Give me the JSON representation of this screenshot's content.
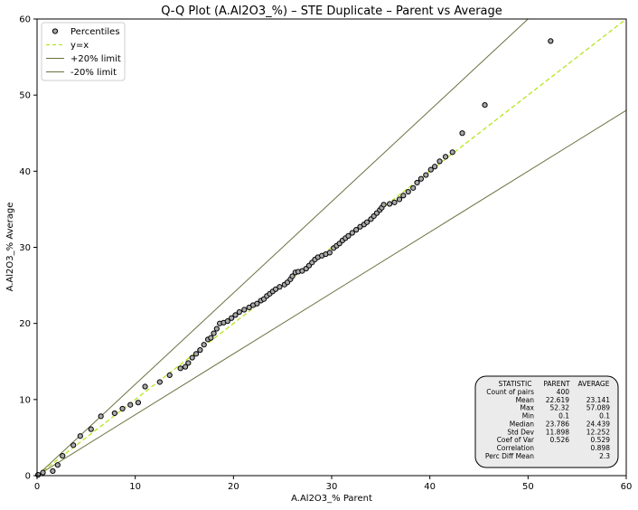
{
  "chart_data": {
    "type": "scatter",
    "title": "Q-Q Plot (A.Al2O3_%) – STE Duplicate – Parent vs Average",
    "xlabel": "A.Al2O3_% Parent",
    "ylabel": "A.Al2O3_% Average",
    "xlim": [
      0,
      60
    ],
    "ylim": [
      0,
      60
    ],
    "xticks": [
      0,
      10,
      20,
      30,
      40,
      50,
      60
    ],
    "yticks": [
      0,
      10,
      20,
      30,
      40,
      50,
      60
    ],
    "grid": false,
    "legend_position": "upper-left",
    "series": [
      {
        "name": "Percentiles",
        "kind": "scatter",
        "marker_color": "#a9a9a9",
        "edge_color": "#000000",
        "points": [
          [
            0.1,
            0.1
          ],
          [
            0.6,
            0.4
          ],
          [
            1.6,
            0.6
          ],
          [
            2.1,
            1.4
          ],
          [
            2.6,
            2.6
          ],
          [
            3.7,
            4.0
          ],
          [
            4.4,
            5.2
          ],
          [
            5.5,
            6.1
          ],
          [
            6.5,
            7.8
          ],
          [
            7.9,
            8.2
          ],
          [
            8.7,
            8.8
          ],
          [
            9.5,
            9.3
          ],
          [
            10.3,
            9.6
          ],
          [
            11.0,
            11.7
          ],
          [
            12.5,
            12.3
          ],
          [
            13.5,
            13.2
          ],
          [
            14.6,
            14.1
          ],
          [
            15.1,
            14.3
          ],
          [
            15.4,
            14.8
          ],
          [
            15.8,
            15.5
          ],
          [
            16.2,
            16.0
          ],
          [
            16.6,
            16.5
          ],
          [
            17.0,
            17.2
          ],
          [
            17.4,
            17.9
          ],
          [
            17.7,
            18.1
          ],
          [
            18.0,
            18.7
          ],
          [
            18.3,
            19.3
          ],
          [
            18.6,
            20.0
          ],
          [
            19.0,
            20.1
          ],
          [
            19.4,
            20.3
          ],
          [
            19.8,
            20.7
          ],
          [
            20.2,
            21.1
          ],
          [
            20.6,
            21.5
          ],
          [
            21.1,
            21.8
          ],
          [
            21.6,
            22.1
          ],
          [
            22.0,
            22.4
          ],
          [
            22.4,
            22.6
          ],
          [
            22.8,
            23.0
          ],
          [
            23.1,
            23.2
          ],
          [
            23.4,
            23.6
          ],
          [
            23.7,
            23.9
          ],
          [
            24.0,
            24.2
          ],
          [
            24.3,
            24.5
          ],
          [
            24.7,
            24.8
          ],
          [
            25.2,
            25.1
          ],
          [
            25.5,
            25.4
          ],
          [
            25.8,
            25.8
          ],
          [
            26.0,
            26.2
          ],
          [
            26.3,
            26.7
          ],
          [
            26.6,
            26.8
          ],
          [
            27.0,
            26.9
          ],
          [
            27.4,
            27.2
          ],
          [
            27.7,
            27.6
          ],
          [
            28.0,
            28.0
          ],
          [
            28.3,
            28.4
          ],
          [
            28.6,
            28.7
          ],
          [
            29.0,
            28.9
          ],
          [
            29.4,
            29.1
          ],
          [
            29.8,
            29.3
          ],
          [
            30.2,
            29.9
          ],
          [
            30.5,
            30.2
          ],
          [
            30.8,
            30.5
          ],
          [
            31.1,
            30.9
          ],
          [
            31.4,
            31.2
          ],
          [
            31.7,
            31.5
          ],
          [
            32.1,
            31.9
          ],
          [
            32.5,
            32.3
          ],
          [
            32.9,
            32.7
          ],
          [
            33.3,
            33.0
          ],
          [
            33.6,
            33.3
          ],
          [
            34.0,
            33.7
          ],
          [
            34.3,
            34.1
          ],
          [
            34.6,
            34.5
          ],
          [
            34.9,
            34.9
          ],
          [
            35.1,
            35.2
          ],
          [
            35.3,
            35.6
          ],
          [
            35.9,
            35.7
          ],
          [
            36.4,
            35.9
          ],
          [
            36.9,
            36.3
          ],
          [
            37.3,
            36.8
          ],
          [
            37.8,
            37.3
          ],
          [
            38.3,
            37.8
          ],
          [
            38.7,
            38.5
          ],
          [
            39.1,
            39.0
          ],
          [
            39.6,
            39.5
          ],
          [
            40.1,
            40.2
          ],
          [
            40.5,
            40.6
          ],
          [
            41.0,
            41.3
          ],
          [
            41.6,
            41.9
          ],
          [
            42.3,
            42.5
          ],
          [
            43.3,
            45.0
          ],
          [
            45.6,
            48.7
          ],
          [
            52.3,
            57.1
          ]
        ]
      },
      {
        "name": "y=x",
        "kind": "line",
        "style": "dashed",
        "color": "#b5e61d",
        "x": [
          0,
          60
        ],
        "y": [
          0,
          60
        ]
      },
      {
        "name": "+20% limit",
        "kind": "line",
        "style": "solid",
        "color": "#6b7240",
        "x": [
          0,
          50
        ],
        "y": [
          0,
          60
        ]
      },
      {
        "name": "-20% limit",
        "kind": "line",
        "style": "solid",
        "color": "#6b7240",
        "x": [
          0,
          60
        ],
        "y": [
          0,
          48
        ]
      }
    ],
    "stats_table": {
      "headers": [
        "STATISTIC",
        "PARENT",
        "AVERAGE"
      ],
      "rows": [
        [
          "Count of pairs",
          "400",
          ""
        ],
        [
          "Mean",
          "22.619",
          "23.141"
        ],
        [
          "Max",
          "52.32",
          "57.089"
        ],
        [
          "Min",
          "0.1",
          "0.1"
        ],
        [
          "Median",
          "23.786",
          "24.439"
        ],
        [
          "Std Dev",
          "11.898",
          "12.252"
        ],
        [
          "Coef of Var",
          "0.526",
          "0.529"
        ],
        [
          "Correlation",
          "",
          "0.898"
        ],
        [
          "Perc Diff Mean",
          "",
          "2.3"
        ]
      ]
    }
  }
}
